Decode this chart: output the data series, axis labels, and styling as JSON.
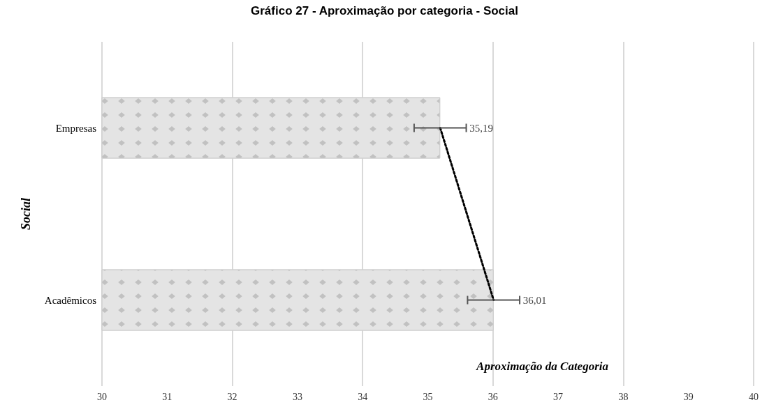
{
  "chart_data": {
    "type": "bar",
    "orientation": "horizontal",
    "title": "Gráfico 27 - Aproximação por categoria - Social",
    "xlabel": "Aproximação da Categoria",
    "ylabel": "Social",
    "categories": [
      "Empresas",
      "Acadêmicos"
    ],
    "series": [
      {
        "color": "#e4e4e4",
        "values": [
          35.19,
          36.01
        ],
        "errors": [
          0.4,
          0.4
        ],
        "value_labels": [
          "35,19",
          "36,01"
        ]
      },
      {
        "type": "line",
        "color": "#000000",
        "values": [
          35.19,
          36.01
        ],
        "line_style": "dotted",
        "marker": "none"
      }
    ],
    "xlim": [
      30,
      40
    ],
    "xticks": [
      30,
      31,
      32,
      33,
      34,
      35,
      36,
      37,
      38,
      39,
      40
    ],
    "grid": "x"
  }
}
